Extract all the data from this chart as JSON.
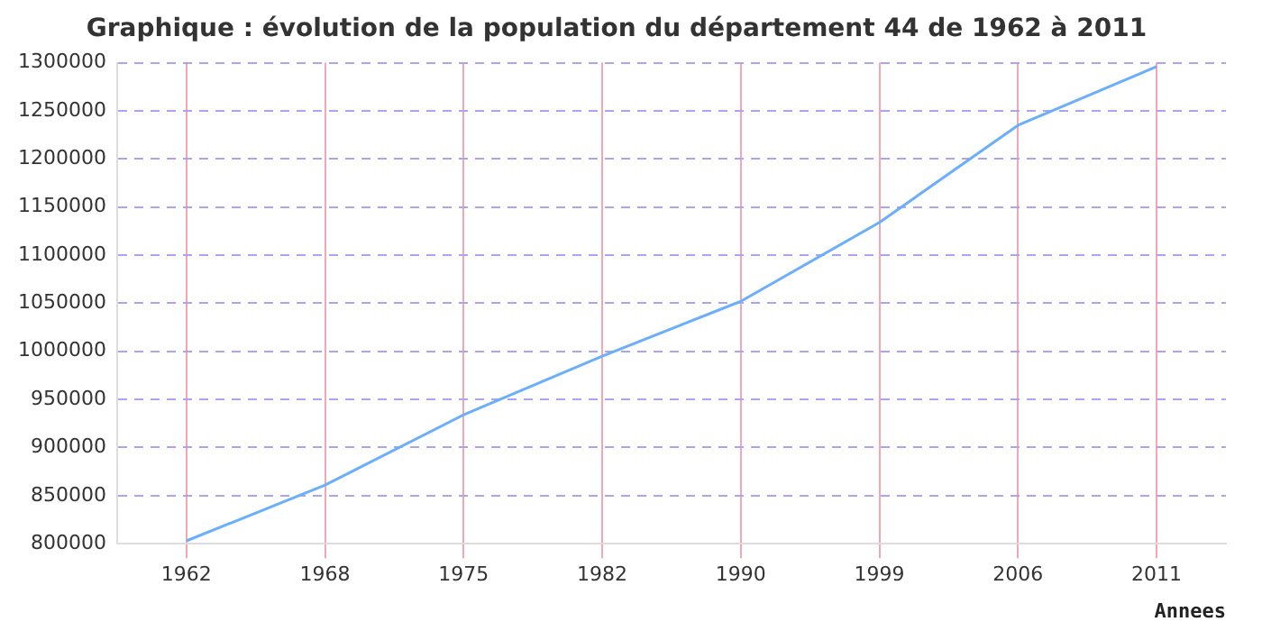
{
  "chart_data": {
    "type": "line",
    "title": "Graphique : évolution de la population du département 44 de 1962 à 2011",
    "xlabel": "Annees",
    "categories": [
      "1962",
      "1968",
      "1975",
      "1982",
      "1990",
      "1999",
      "2006",
      "2011"
    ],
    "series": [
      {
        "color": "#6aaefc",
        "values": [
          803000,
          861000,
          934000,
          995000,
          1052000,
          1134000,
          1235000,
          1296000
        ]
      }
    ],
    "ylim": [
      800000,
      1300000
    ],
    "yticks": [
      800000,
      850000,
      900000,
      950000,
      1000000,
      1050000,
      1100000,
      1150000,
      1200000,
      1250000,
      1300000
    ],
    "grid": true,
    "legend": false,
    "marker": "none",
    "line_style": "solid"
  }
}
